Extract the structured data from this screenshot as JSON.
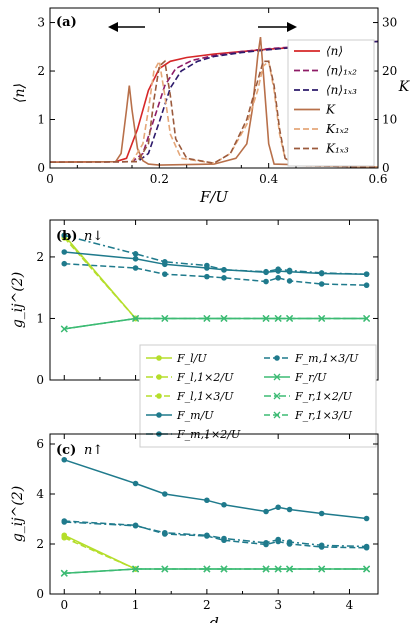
{
  "chart_data": [
    {
      "type": "line",
      "panel_label": "(a)",
      "xlabel": "F/U",
      "ylabel_left": "⟨n⟩",
      "ylabel_right": "K",
      "xlim": [
        0,
        0.6
      ],
      "ylim_left": [
        0,
        3.3
      ],
      "ylim_right": [
        0,
        33
      ],
      "xticks": [
        0,
        0.2,
        0.4,
        0.6
      ],
      "xtick_labels": [
        "0",
        "0.2",
        "0.4",
        "0.6"
      ],
      "yticks_left": [
        0,
        1,
        2,
        3
      ],
      "yticks_right": [
        0,
        10,
        20,
        30
      ],
      "hysteresis_arrows": [
        "left",
        "right"
      ],
      "series": [
        {
          "name": "⟨n⟩",
          "color": "#d62728",
          "dash": "solid",
          "axis": "left",
          "x": [
            0,
            0.12,
            0.14,
            0.16,
            0.18,
            0.2,
            0.22,
            0.25,
            0.3,
            0.35,
            0.4,
            0.45,
            0.5,
            0.55,
            0.6
          ],
          "y": [
            0.12,
            0.13,
            0.2,
            0.8,
            1.6,
            2.05,
            2.2,
            2.28,
            2.35,
            2.4,
            2.45,
            2.49,
            2.53,
            2.57,
            2.61
          ]
        },
        {
          "name": "⟨n⟩₁ₓ₂",
          "color": "#8e1b66",
          "dash": "dashed",
          "axis": "left",
          "x": [
            0,
            0.15,
            0.17,
            0.19,
            0.21,
            0.23,
            0.26,
            0.3,
            0.35,
            0.4,
            0.45,
            0.5,
            0.55,
            0.6
          ],
          "y": [
            0.12,
            0.13,
            0.3,
            1.0,
            1.7,
            2.05,
            2.22,
            2.32,
            2.4,
            2.46,
            2.5,
            2.54,
            2.58,
            2.61
          ]
        },
        {
          "name": "⟨n⟩₁ₓ₃",
          "color": "#2d1a6b",
          "dash": "dashed",
          "axis": "left",
          "x": [
            0,
            0.16,
            0.18,
            0.2,
            0.22,
            0.24,
            0.27,
            0.3,
            0.35,
            0.4,
            0.45,
            0.5,
            0.55,
            0.6
          ],
          "y": [
            0.12,
            0.13,
            0.3,
            0.95,
            1.65,
            2.0,
            2.2,
            2.3,
            2.38,
            2.44,
            2.49,
            2.54,
            2.58,
            2.61
          ]
        },
        {
          "name": "K",
          "color": "#b8704a",
          "dash": "solid",
          "axis": "right",
          "x": [
            0,
            0.12,
            0.13,
            0.14,
            0.145,
            0.15,
            0.16,
            0.17,
            0.18,
            0.2,
            0.3,
            0.34,
            0.36,
            0.37,
            0.38,
            0.385,
            0.39,
            0.4,
            0.41,
            0.6
          ],
          "y": [
            1.2,
            1.3,
            3,
            12,
            17,
            12,
            4,
            1.5,
            0.8,
            0.6,
            0.8,
            2,
            5,
            12,
            23,
            27,
            20,
            5,
            0.8,
            0.2
          ]
        },
        {
          "name": "K₁ₓ₂",
          "color": "#e5a779",
          "dash": "dashed",
          "axis": "right",
          "x": [
            0,
            0.15,
            0.17,
            0.18,
            0.19,
            0.2,
            0.21,
            0.22,
            0.24,
            0.3,
            0.33,
            0.36,
            0.38,
            0.39,
            0.4,
            0.41,
            0.42,
            0.43,
            0.45,
            0.6
          ],
          "y": [
            1.2,
            1.3,
            5,
            12,
            20,
            22,
            15,
            7,
            2,
            1,
            3,
            9,
            16,
            21,
            22,
            16,
            7,
            2,
            0.5,
            0.2
          ]
        },
        {
          "name": "K₁ₓ₃",
          "color": "#9b5a3c",
          "dash": "dashed",
          "axis": "right",
          "x": [
            0,
            0.16,
            0.18,
            0.19,
            0.2,
            0.21,
            0.22,
            0.23,
            0.25,
            0.3,
            0.33,
            0.36,
            0.38,
            0.39,
            0.4,
            0.41,
            0.42,
            0.43,
            0.45,
            0.6
          ],
          "y": [
            1.2,
            1.3,
            5,
            14,
            21,
            22,
            15,
            6,
            2,
            1,
            3,
            10,
            18,
            22,
            22,
            17,
            8,
            2,
            0.5,
            0.2
          ]
        }
      ]
    },
    {
      "type": "line",
      "panel_label": "(b)",
      "annotation": "n↓",
      "ylabel": "g_ij^(2)",
      "xlim": [
        -0.2,
        4.4
      ],
      "ylim": [
        0,
        2.6
      ],
      "xticks": [
        0,
        1,
        2,
        3,
        4
      ],
      "yticks": [
        0,
        1,
        2
      ],
      "ytick_labels": [
        "0",
        "1",
        "2"
      ],
      "series": [
        {
          "name": "F_l/U",
          "color": "#b5de2b",
          "dash": "solid",
          "marker": "dot",
          "x": [
            0,
            1
          ],
          "y": [
            2.35,
            1.0
          ]
        },
        {
          "name": "F_l,1×2/U",
          "color": "#b5de2b",
          "dash": "dashdot",
          "marker": "dot",
          "x": [
            0,
            1
          ],
          "y": [
            2.33,
            1.0
          ]
        },
        {
          "name": "F_l,1×3/U",
          "color": "#b5de2b",
          "dash": "dashed",
          "marker": "dot",
          "x": [
            0,
            1
          ],
          "y": [
            2.31,
            1.0
          ]
        },
        {
          "name": "F_m/U",
          "color": "#1f7a8c",
          "dash": "solid",
          "marker": "dot",
          "x": [
            0,
            1,
            1.41,
            2,
            2.24,
            2.83,
            3,
            3.16,
            3.61,
            4.24
          ],
          "y": [
            2.08,
            1.97,
            1.88,
            1.82,
            1.79,
            1.75,
            1.77,
            1.76,
            1.73,
            1.72
          ]
        },
        {
          "name": "F_m,1×2/U",
          "color": "#1f7a8c",
          "dash": "dashdot",
          "marker": "dot",
          "x": [
            0,
            1,
            1.41,
            2,
            2.24,
            2.83,
            3,
            3.16,
            3.61,
            4.24
          ],
          "y": [
            2.35,
            2.05,
            1.92,
            1.86,
            1.79,
            1.76,
            1.8,
            1.78,
            1.74,
            1.72
          ]
        },
        {
          "name": "F_m,1×3/U",
          "color": "#1f7a8c",
          "dash": "dashed",
          "marker": "dot",
          "x": [
            0,
            1,
            1.41,
            2,
            2.24,
            2.83,
            3,
            3.16,
            3.61,
            4.24
          ],
          "y": [
            1.89,
            1.82,
            1.72,
            1.68,
            1.66,
            1.6,
            1.66,
            1.61,
            1.56,
            1.54
          ]
        },
        {
          "name": "F_r/U",
          "color": "#3dbb74",
          "dash": "solid",
          "marker": "x",
          "x": [
            0,
            1,
            1.41,
            2,
            2.24,
            2.83,
            3,
            3.16,
            3.61,
            4.24
          ],
          "y": [
            0.83,
            1,
            1,
            1,
            1,
            1,
            1,
            1,
            1,
            1
          ]
        },
        {
          "name": "F_r,1×2/U",
          "color": "#3dbb74",
          "dash": "dashdot",
          "marker": "x",
          "x": [
            0,
            1,
            1.41,
            2,
            2.24,
            2.83,
            3,
            3.16,
            3.61,
            4.24
          ],
          "y": [
            0.83,
            1,
            1,
            1,
            1,
            1,
            1,
            1,
            1,
            1
          ]
        },
        {
          "name": "F_r,1×3/U",
          "color": "#3dbb74",
          "dash": "dashed",
          "marker": "x",
          "x": [
            0,
            1,
            1.41,
            2,
            2.24,
            2.83,
            3,
            3.16,
            3.61,
            4.24
          ],
          "y": [
            0.83,
            1,
            1,
            1,
            1,
            1,
            1,
            1,
            1,
            1
          ]
        }
      ]
    },
    {
      "type": "line",
      "panel_label": "(c)",
      "annotation": "n↑",
      "xlabel": "d",
      "ylabel": "g_ij^(2)",
      "xlim": [
        -0.2,
        4.4
      ],
      "ylim": [
        0,
        6.4
      ],
      "xticks": [
        0,
        1,
        2,
        3,
        4
      ],
      "xtick_labels": [
        "0",
        "1",
        "2",
        "3",
        "4"
      ],
      "yticks": [
        0,
        2,
        4,
        6
      ],
      "ytick_labels": [
        "0",
        "2",
        "4",
        "6"
      ],
      "series": [
        {
          "name": "F_l/U",
          "color": "#b5de2b",
          "dash": "solid",
          "marker": "dot",
          "x": [
            0,
            1
          ],
          "y": [
            2.35,
            1.0
          ]
        },
        {
          "name": "F_l,1×2/U",
          "color": "#b5de2b",
          "dash": "dashdot",
          "marker": "dot",
          "x": [
            0,
            1
          ],
          "y": [
            2.3,
            1.0
          ]
        },
        {
          "name": "F_l,1×3/U",
          "color": "#b5de2b",
          "dash": "dashed",
          "marker": "dot",
          "x": [
            0,
            1
          ],
          "y": [
            2.25,
            1.0
          ]
        },
        {
          "name": "F_m/U",
          "color": "#1f7a8c",
          "dash": "solid",
          "marker": "dot",
          "x": [
            0,
            1,
            1.41,
            2,
            2.24,
            2.83,
            3,
            3.16,
            3.61,
            4.24
          ],
          "y": [
            5.37,
            4.42,
            4.0,
            3.75,
            3.57,
            3.3,
            3.47,
            3.38,
            3.22,
            3.02
          ]
        },
        {
          "name": "F_m,1×2/U",
          "color": "#1f7a8c",
          "dash": "dashdot",
          "marker": "dot",
          "x": [
            0,
            1,
            1.41,
            2,
            2.24,
            2.83,
            3,
            3.16,
            3.61,
            4.24
          ],
          "y": [
            2.88,
            2.73,
            2.45,
            2.35,
            2.22,
            2.05,
            2.18,
            2.08,
            1.95,
            1.9
          ]
        },
        {
          "name": "F_m,1×3/U",
          "color": "#1f7a8c",
          "dash": "dashed",
          "marker": "dot",
          "x": [
            0,
            1,
            1.41,
            2,
            2.24,
            2.83,
            3,
            3.16,
            3.61,
            4.24
          ],
          "y": [
            2.92,
            2.75,
            2.4,
            2.32,
            2.15,
            1.98,
            2.1,
            2.0,
            1.88,
            1.85
          ]
        },
        {
          "name": "F_r/U",
          "color": "#3dbb74",
          "dash": "solid",
          "marker": "x",
          "x": [
            0,
            1,
            1.41,
            2,
            2.24,
            2.83,
            3,
            3.16,
            3.61,
            4.24
          ],
          "y": [
            0.83,
            1,
            1,
            1,
            1,
            1,
            1,
            1,
            1,
            1
          ]
        },
        {
          "name": "F_r,1×2/U",
          "color": "#3dbb74",
          "dash": "dashdot",
          "marker": "x",
          "x": [
            0,
            1,
            1.41,
            2,
            2.24,
            2.83,
            3,
            3.16,
            3.61,
            4.24
          ],
          "y": [
            0.83,
            1,
            1,
            1,
            1,
            1,
            1,
            1,
            1,
            1
          ]
        },
        {
          "name": "F_r,1×3/U",
          "color": "#3dbb74",
          "dash": "dashed",
          "marker": "x",
          "x": [
            0,
            1,
            1.41,
            2,
            2.24,
            2.83,
            3,
            3.16,
            3.61,
            4.24
          ],
          "y": [
            0.83,
            1,
            1,
            1,
            1,
            1,
            1,
            1,
            1,
            1
          ]
        }
      ]
    }
  ]
}
